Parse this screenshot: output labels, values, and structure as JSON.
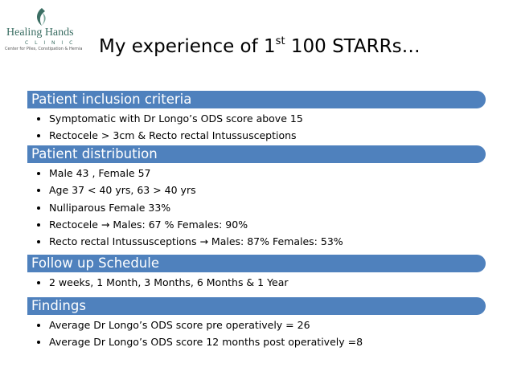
{
  "header": {
    "logo": {
      "name": "Healing Hands",
      "sub": "C L I N I C",
      "tagline": "Center for Piles, Constipation & Hernia"
    },
    "title": {
      "text": "My experience of 1",
      "superscript": "st",
      "rest": " 100 STARRs…"
    }
  },
  "sections": [
    {
      "heading": "Patient inclusion criteria",
      "items": [
        "Symptomatic with Dr Longo’s ODS score above 15",
        "Rectocele > 3cm & Recto rectal Intussusceptions"
      ]
    },
    {
      "heading": "Patient distribution",
      "items": [
        "Male 43 , Female 57",
        "Age  37 < 40 yrs, 63 > 40 yrs",
        "Nulliparous Female 33%",
        "Rectocele  → Males: 67 %  Females: 90%",
        "Recto rectal Intussusceptions → Males: 87%  Females: 53%"
      ]
    },
    {
      "heading": "Follow up Schedule",
      "items": [
        "2 weeks, 1 Month, 3 Months, 6 Months & 1 Year"
      ]
    },
    {
      "heading": "Findings",
      "items": [
        "Average Dr Longo’s ODS score pre operatively = 26",
        "Average Dr Longo’s ODS score 12 months post operatively =8"
      ]
    }
  ]
}
